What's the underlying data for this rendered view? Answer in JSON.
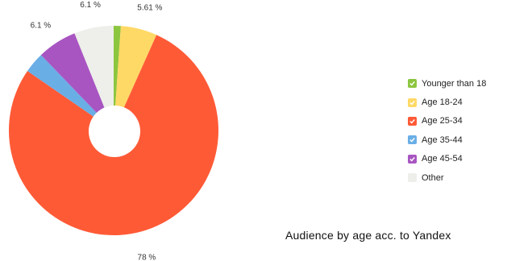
{
  "chart_data": {
    "type": "pie",
    "donut": true,
    "title": "Audience by age acc. to Yandex",
    "legend_position": "right",
    "series": [
      {
        "name": "Younger than 18",
        "value": 1.1,
        "color": "#8cc63f",
        "label": ""
      },
      {
        "name": "Age 18-24",
        "value": 5.61,
        "color": "#ffd966",
        "label": "5.61 %"
      },
      {
        "name": "Age 25-34",
        "value": 78,
        "color": "#ff5a36",
        "label": "78 %"
      },
      {
        "name": "Age 35-44",
        "value": 3.2,
        "color": "#6aaee6",
        "label": ""
      },
      {
        "name": "Age 45-54",
        "value": 6.1,
        "color": "#a855c2",
        "label": "6.1 %"
      },
      {
        "name": "Other",
        "value": 6.1,
        "color": "#eeeeea",
        "label": "6.1 %"
      }
    ]
  }
}
